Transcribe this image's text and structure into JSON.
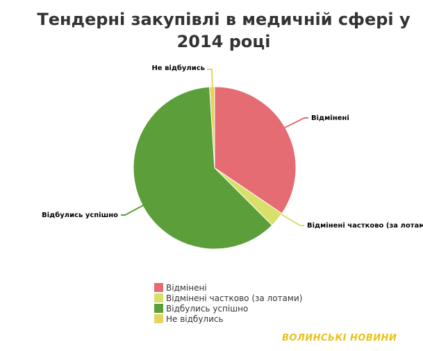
{
  "chart_data": {
    "type": "pie",
    "title_lines": [
      "Тендерні закупівлі в медичній сфері у",
      "2014 році"
    ],
    "slices": [
      {
        "name": "Відмінені",
        "value": 34.5,
        "color": "#e46c72"
      },
      {
        "name": "Відмінені частково (за лотами)",
        "value": 3.0,
        "color": "#d8e06a"
      },
      {
        "name": "Відбулись успішно",
        "value": 61.5,
        "color": "#5c9e3a"
      },
      {
        "name": "Не відбулись",
        "value": 1.0,
        "color": "#e2d45e"
      }
    ],
    "legend_position": "bottom"
  },
  "watermark": "ВОЛИНСЬКІ НОВИНИ"
}
